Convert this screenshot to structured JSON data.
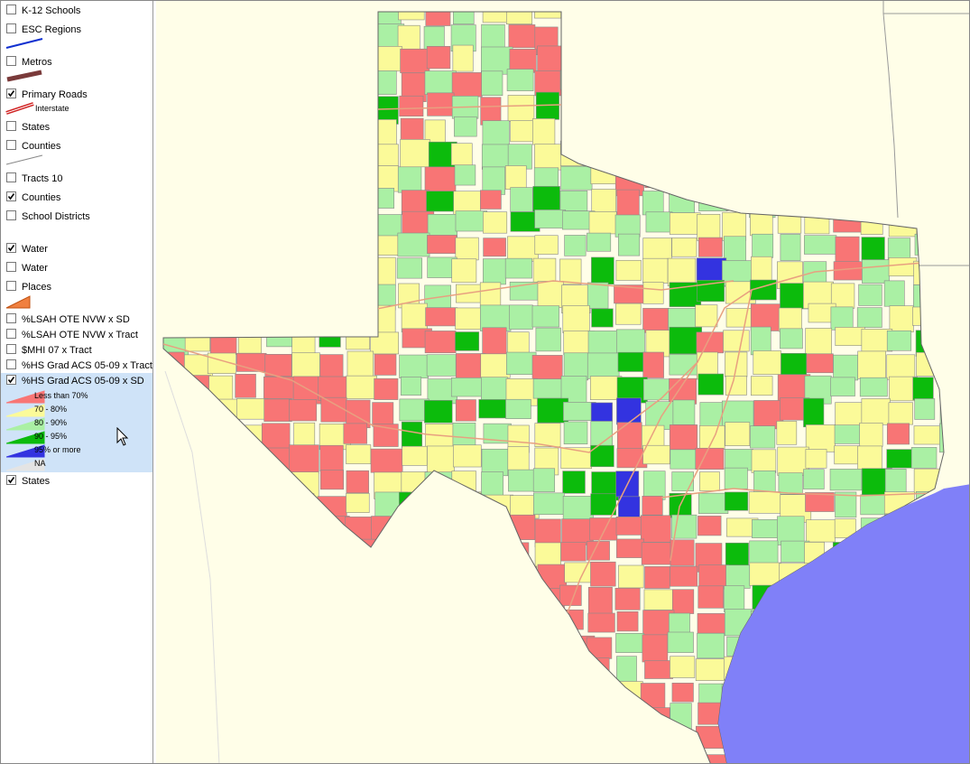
{
  "layers": [
    {
      "label": "K-12 Schools",
      "checked": false
    },
    {
      "label": "ESC Regions",
      "checked": false
    },
    {
      "label": "Metros",
      "checked": false
    },
    {
      "label": "Primary Roads",
      "checked": true,
      "sublabel": "Interstate"
    },
    {
      "label": "States",
      "checked": false
    },
    {
      "label": "Counties",
      "checked": false
    },
    {
      "label": "Tracts 10",
      "checked": false
    },
    {
      "label": "Counties",
      "checked": true
    },
    {
      "label": "School Districts",
      "checked": false
    },
    {
      "label": "Water",
      "checked": true
    },
    {
      "label": "Water",
      "checked": false
    },
    {
      "label": "Places",
      "checked": false
    },
    {
      "label": "%LSAH OTE NVW x SD",
      "checked": false
    },
    {
      "label": "%LSAH OTE NVW x Tract",
      "checked": false
    },
    {
      "label": "$MHI 07 x Tract",
      "checked": false
    },
    {
      "label": "%HS Grad ACS 05-09 x Tract",
      "checked": false
    },
    {
      "label": "%HS Grad ACS 05-09 x SD",
      "checked": true,
      "selected": true
    },
    {
      "label": "States",
      "checked": true
    }
  ],
  "legend": {
    "items": [
      {
        "label": "Less than 70%",
        "color": "#f87575"
      },
      {
        "label": "70 - 80%",
        "color": "#fbfa99"
      },
      {
        "label": "80 - 90%",
        "color": "#aaf0a4"
      },
      {
        "label": "90 - 95%",
        "color": "#0cbb0c"
      },
      {
        "label": "95% or more",
        "color": "#3333e0"
      },
      {
        "label": "NA",
        "color": "#e4e4e4"
      }
    ]
  },
  "water_color": "#8080f8"
}
